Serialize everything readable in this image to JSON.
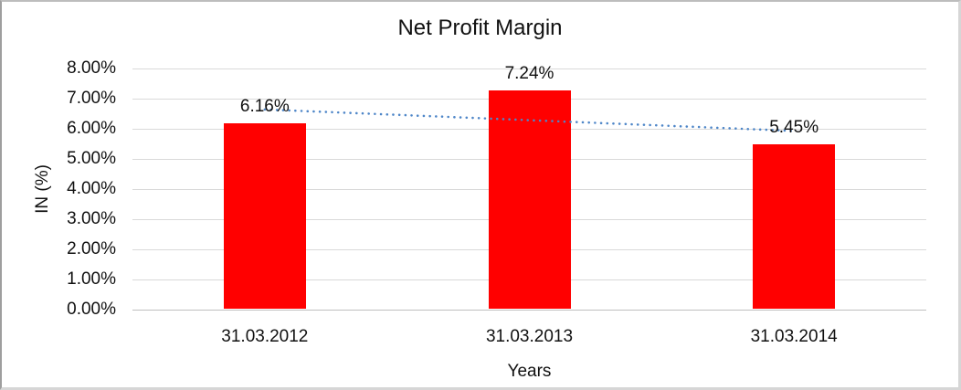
{
  "chart_data": {
    "type": "bar",
    "title": "Net Profit Margin",
    "xlabel": "Years",
    "ylabel": "IN (%)",
    "categories": [
      "31.03.2012",
      "31.03.2013",
      "31.03.2014"
    ],
    "values": [
      6.16,
      7.24,
      5.45
    ],
    "data_labels": [
      "6.16%",
      "7.24%",
      "5.45%"
    ],
    "ylim": [
      0,
      8
    ],
    "ytick_labels": [
      "0.00%",
      "1.00%",
      "2.00%",
      "3.00%",
      "4.00%",
      "5.00%",
      "6.00%",
      "7.00%",
      "8.00%"
    ],
    "grid": true,
    "legend": false,
    "bar_color": "#FF0000",
    "gridline_color": "#d9d9d9",
    "axis_line_color": "#bfbfbf",
    "trendline": {
      "type": "linear",
      "style": "dotted",
      "color": "#4E86C8",
      "start_value": 6.64,
      "end_value": 5.93
    }
  }
}
